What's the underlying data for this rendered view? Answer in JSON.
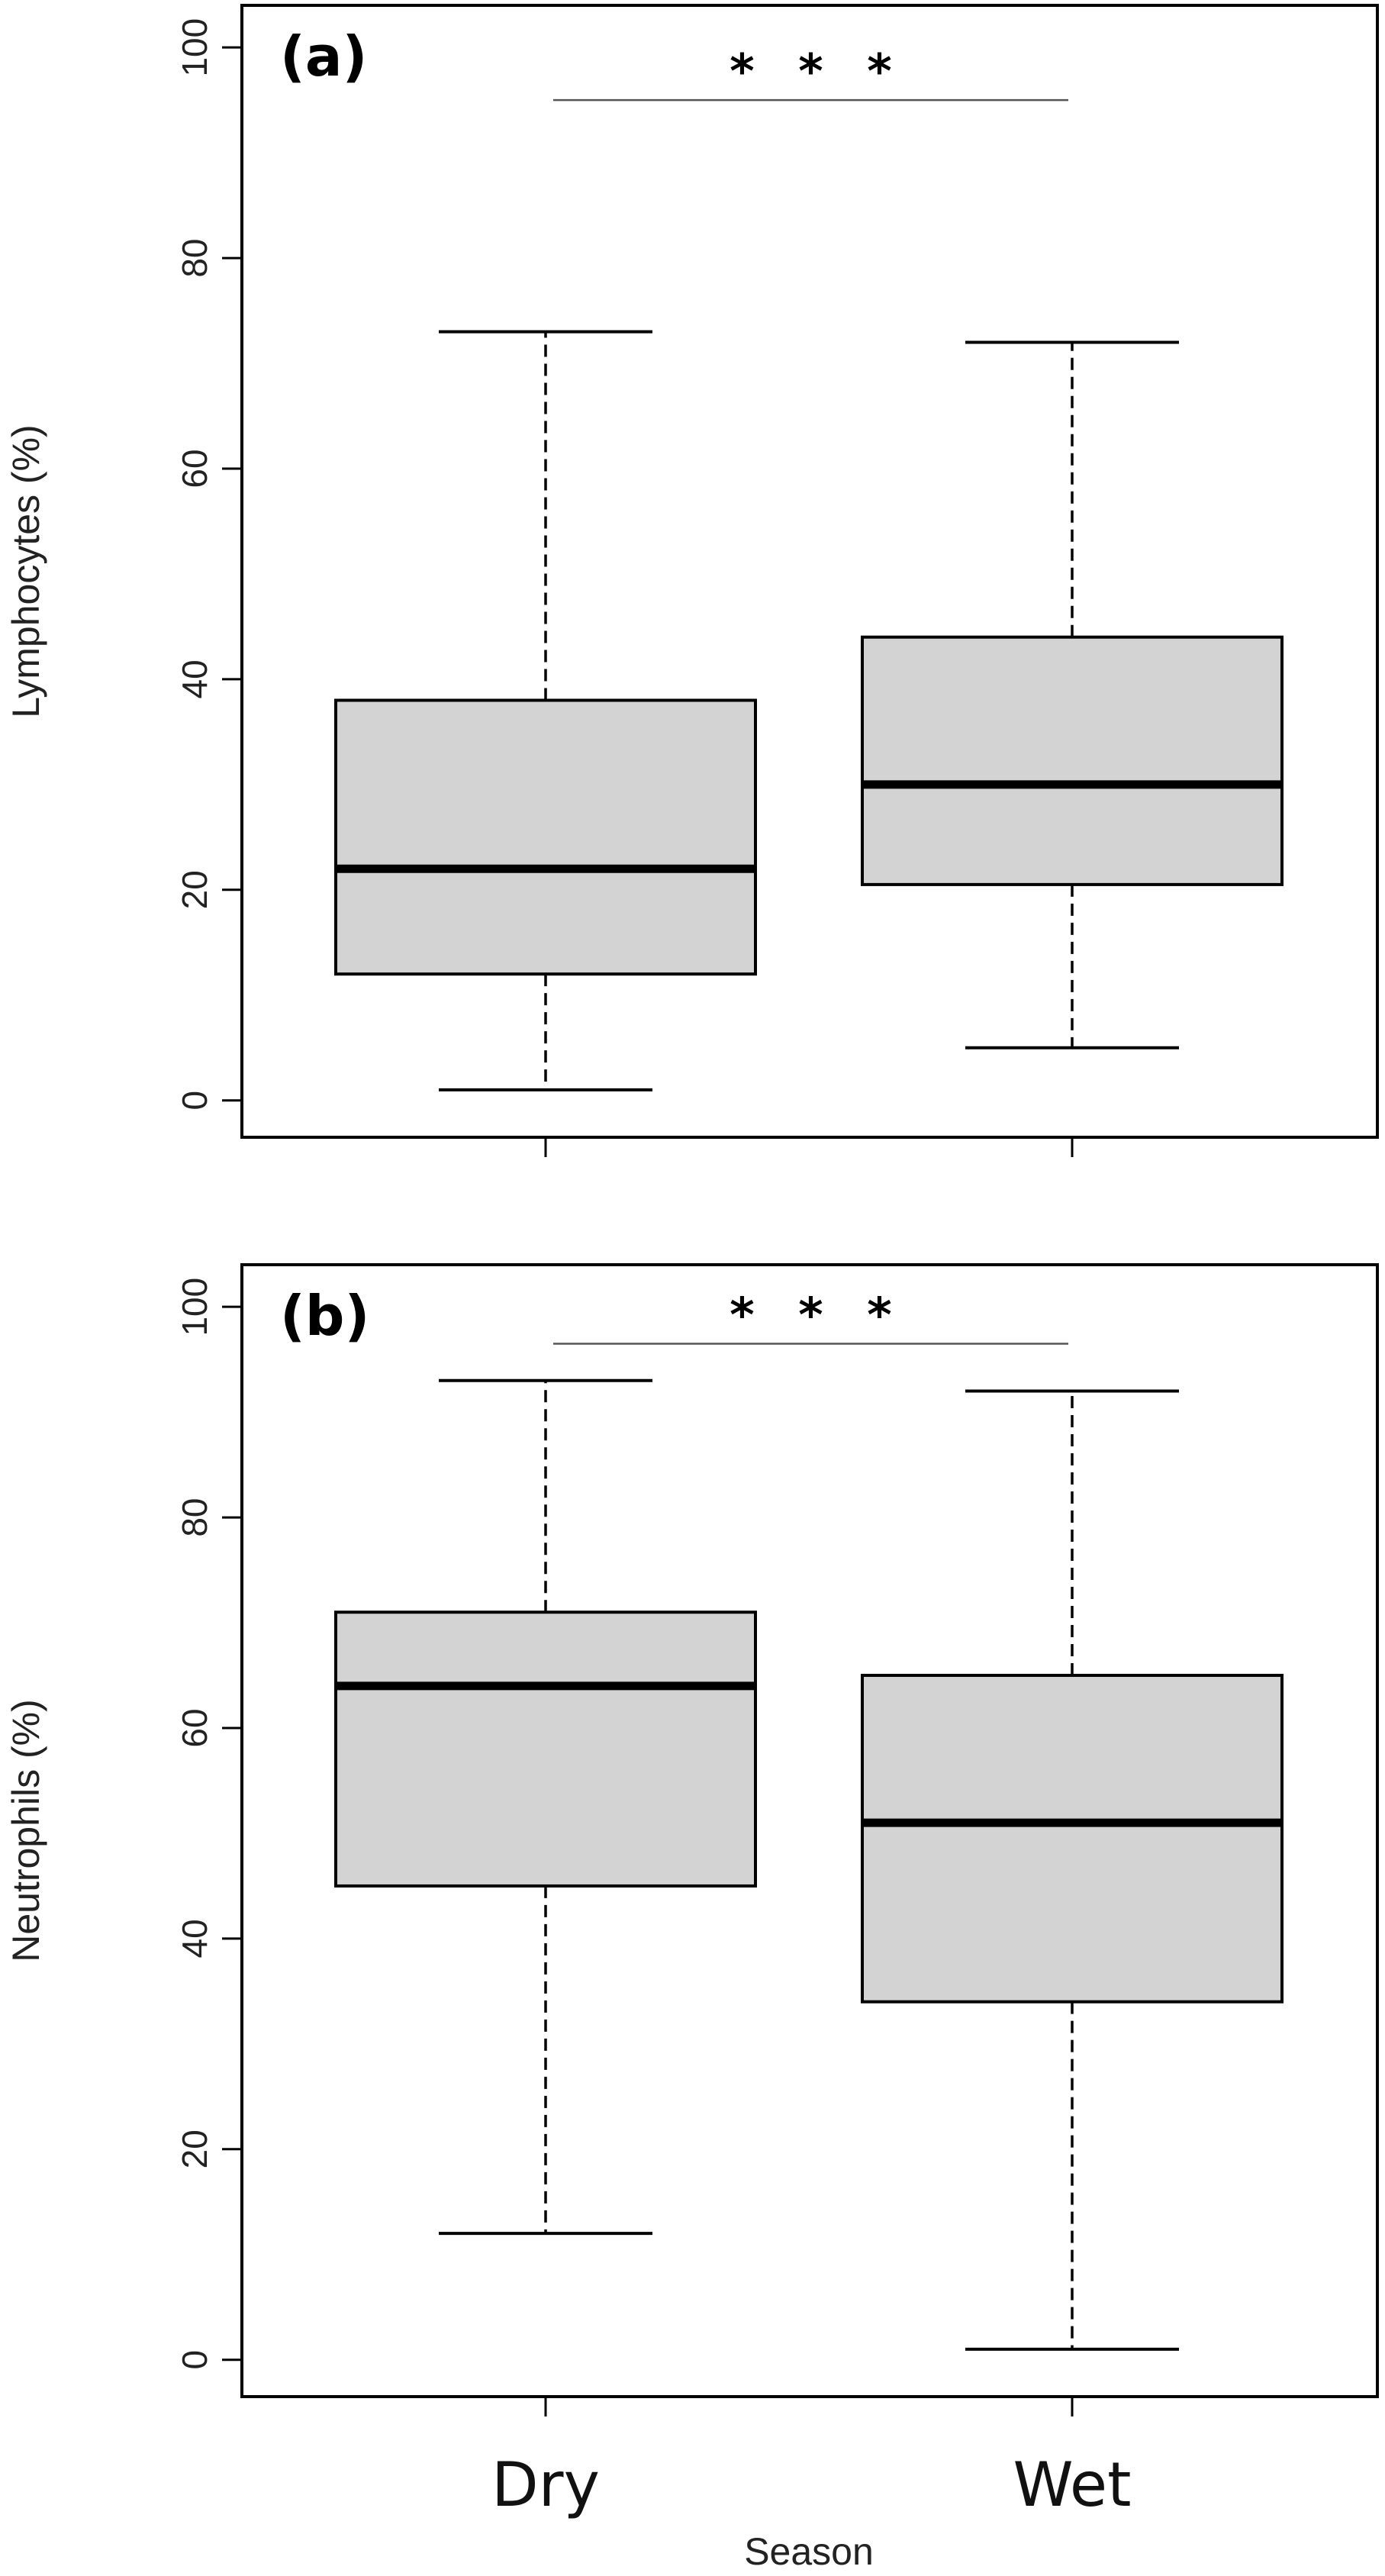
{
  "chart_data": [
    {
      "type": "boxplot",
      "panel_label": "(a)",
      "ylabel": "Lymphocytes (%)",
      "xlabel": "",
      "ylim": [
        -3.5,
        104
      ],
      "yticks": [
        "0",
        "20",
        "40",
        "60",
        "80",
        "100"
      ],
      "categories": [
        "Dry",
        "Wet"
      ],
      "boxes": [
        {
          "category": "Dry",
          "whisker_low": 1,
          "q1": 12,
          "median": 22,
          "q3": 38,
          "whisker_high": 73
        },
        {
          "category": "Wet",
          "whisker_low": 5,
          "q1": 20.5,
          "median": 30,
          "q3": 44,
          "whisker_high": 72
        }
      ],
      "significance": {
        "label": "* * *",
        "y": 95
      },
      "box_fill": "#d3d3d3"
    },
    {
      "type": "boxplot",
      "panel_label": "(b)",
      "ylabel": "Neutrophils (%)",
      "xlabel": "Season",
      "ylim": [
        -3.5,
        104
      ],
      "yticks": [
        "0",
        "20",
        "40",
        "60",
        "80",
        "100"
      ],
      "categories": [
        "Dry",
        "Wet"
      ],
      "boxes": [
        {
          "category": "Dry",
          "whisker_low": 12,
          "q1": 45,
          "median": 64,
          "q3": 71,
          "whisker_high": 93
        },
        {
          "category": "Wet",
          "whisker_low": 1,
          "q1": 34,
          "median": 51,
          "q3": 65,
          "whisker_high": 92
        }
      ],
      "significance": {
        "label": "* * *",
        "y": 96.5
      },
      "box_fill": "#d3d3d3"
    }
  ]
}
